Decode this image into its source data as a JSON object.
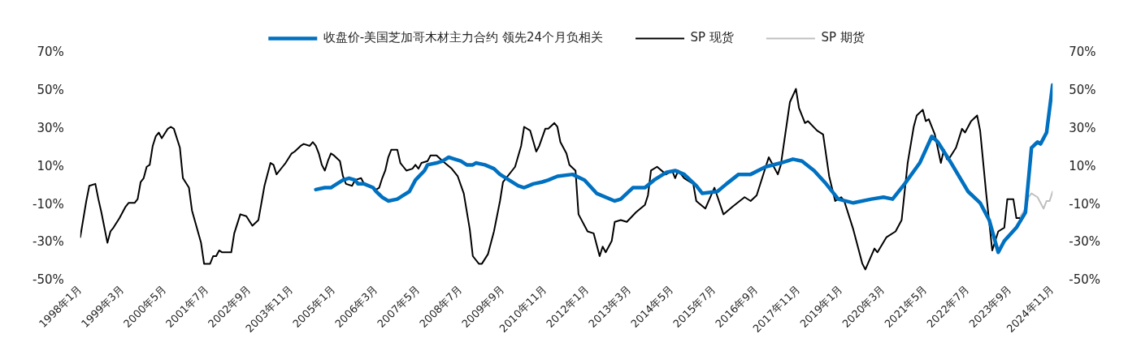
{
  "chart_data": {
    "type": "line",
    "legend": "top",
    "grid": false,
    "marker": "none",
    "line_style": "solid",
    "ylim": [
      -50,
      70
    ],
    "yticks": [
      {
        "value": -50,
        "label": "-50%"
      },
      {
        "value": -30,
        "label": "-30%"
      },
      {
        "value": -10,
        "label": "-10%"
      },
      {
        "value": 10,
        "label": "10%"
      },
      {
        "value": 30,
        "label": "30%"
      },
      {
        "value": 50,
        "label": "50%"
      },
      {
        "value": 70,
        "label": "70%"
      }
    ],
    "y2lim": [
      -50,
      70
    ],
    "y2ticks": [
      {
        "value": -50,
        "label": "-50%"
      },
      {
        "value": -30,
        "label": "-30%"
      },
      {
        "value": -10,
        "label": "-10%"
      },
      {
        "value": 10,
        "label": "10%"
      },
      {
        "value": 30,
        "label": "30%"
      },
      {
        "value": 50,
        "label": "50%"
      },
      {
        "value": 70,
        "label": "70%"
      }
    ],
    "xlim": [
      "1998-01",
      "2024-11"
    ],
    "xticks": [
      {
        "value": "1998-01",
        "label": "1998年1月"
      },
      {
        "value": "1999-03",
        "label": "1999年3月"
      },
      {
        "value": "2000-05",
        "label": "2000年5月"
      },
      {
        "value": "2001-07",
        "label": "2001年7月"
      },
      {
        "value": "2002-09",
        "label": "2002年9月"
      },
      {
        "value": "2003-11",
        "label": "2003年11月"
      },
      {
        "value": "2005-01",
        "label": "2005年1月"
      },
      {
        "value": "2006-03",
        "label": "2006年3月"
      },
      {
        "value": "2007-05",
        "label": "2007年5月"
      },
      {
        "value": "2008-07",
        "label": "2008年7月"
      },
      {
        "value": "2009-09",
        "label": "2009年9月"
      },
      {
        "value": "2010-11",
        "label": "2010年11月"
      },
      {
        "value": "2012-01",
        "label": "2012年1月"
      },
      {
        "value": "2013-03",
        "label": "2013年3月"
      },
      {
        "value": "2014-05",
        "label": "2014年5月"
      },
      {
        "value": "2015-07",
        "label": "2015年7月"
      },
      {
        "value": "2016-09",
        "label": "2016年9月"
      },
      {
        "value": "2017-11",
        "label": "2017年11月"
      },
      {
        "value": "2019-01",
        "label": "2019年1月"
      },
      {
        "value": "2020-03",
        "label": "2020年3月"
      },
      {
        "value": "2021-05",
        "label": "2021年5月"
      },
      {
        "value": "2022-07",
        "label": "2022年7月"
      },
      {
        "value": "2023-09",
        "label": "2023年9月"
      },
      {
        "value": "2024-11",
        "label": "2024年11月"
      }
    ],
    "series": [
      {
        "name": "收盘价-美国芝加哥木材主力合约 领先24个月负相关",
        "color": "#0070c0",
        "x": [
          "2004-07",
          "2004-10",
          "2004-12",
          "2005-01",
          "2005-04",
          "2005-06",
          "2005-08",
          "2005-09",
          "2005-11",
          "2006-02",
          "2006-03",
          "2006-05",
          "2006-07",
          "2006-10",
          "2006-12",
          "2007-02",
          "2007-04",
          "2007-07",
          "2007-08",
          "2007-11",
          "2008-01",
          "2008-03",
          "2008-05",
          "2008-07",
          "2008-09",
          "2008-11",
          "2008-12",
          "2009-03",
          "2009-06",
          "2009-08",
          "2009-11",
          "2010-02",
          "2010-04",
          "2010-07",
          "2010-10",
          "2010-12",
          "2011-03",
          "2011-08",
          "2011-12",
          "2012-04",
          "2012-10",
          "2012-12",
          "2013-04",
          "2013-08",
          "2013-11",
          "2014-03",
          "2014-06",
          "2014-09",
          "2015-01",
          "2015-03",
          "2015-08",
          "2015-11",
          "2016-03",
          "2016-07",
          "2016-12",
          "2017-05",
          "2017-09",
          "2017-12",
          "2018-04",
          "2018-08",
          "2018-12",
          "2019-05",
          "2019-11",
          "2020-03",
          "2020-06",
          "2020-10",
          "2021-03",
          "2021-07",
          "2021-09",
          "2022-01",
          "2022-07",
          "2022-11",
          "2023-02",
          "2023-05",
          "2023-07",
          "2023-11",
          "2024-02",
          "2024-04",
          "2024-06",
          "2024-07",
          "2024-09",
          "2024-11"
        ],
        "values": [
          -2,
          -1,
          -1,
          0,
          3,
          4,
          3,
          1,
          1,
          -1,
          -3,
          -6,
          -8,
          -7,
          -5,
          -3,
          3,
          8,
          11,
          12,
          13,
          15,
          14,
          13,
          11,
          11,
          12,
          11,
          9,
          6,
          3,
          0,
          -1,
          1,
          2,
          3,
          5,
          6,
          3,
          -4,
          -8,
          -7,
          -1,
          -1,
          3,
          7,
          8,
          6,
          0,
          -4,
          -3,
          1,
          6,
          6,
          10,
          12,
          14,
          13,
          8,
          1,
          -7,
          -9,
          -7,
          -6,
          -7,
          1,
          12,
          26,
          23,
          13,
          -3,
          -9,
          -18,
          -35,
          -29,
          -22,
          -14,
          20,
          23,
          22,
          28,
          53
        ]
      },
      {
        "name": "SP 现货",
        "color": "#000000",
        "x": [
          "1998-01",
          "1998-03",
          "1998-04",
          "1998-06",
          "1998-07",
          "1998-08",
          "1998-10",
          "1998-11",
          "1998-12",
          "1999-02",
          "1999-04",
          "1999-05",
          "1999-07",
          "1999-08",
          "1999-09",
          "1999-10",
          "1999-11",
          "1999-12",
          "2000-01",
          "2000-02",
          "2000-03",
          "2000-04",
          "2000-06",
          "2000-07",
          "2000-08",
          "2000-10",
          "2000-11",
          "2001-01",
          "2001-02",
          "2001-05",
          "2001-06",
          "2001-08",
          "2001-09",
          "2001-10",
          "2001-11",
          "2001-12",
          "2002-03",
          "2002-04",
          "2002-06",
          "2002-08",
          "2002-10",
          "2002-12",
          "2003-02",
          "2003-04",
          "2003-05",
          "2003-06",
          "2003-08",
          "2003-09",
          "2003-11",
          "2003-12",
          "2004-02",
          "2004-03",
          "2004-05",
          "2004-06",
          "2004-07",
          "2004-08",
          "2004-09",
          "2004-10",
          "2004-11",
          "2004-12",
          "2005-01",
          "2005-03",
          "2005-04",
          "2005-05",
          "2005-07",
          "2005-08",
          "2005-10",
          "2005-11",
          "2006-02",
          "2006-03",
          "2006-04",
          "2006-05",
          "2006-06",
          "2006-07",
          "2006-08",
          "2006-10",
          "2006-11",
          "2006-12",
          "2007-01",
          "2007-03",
          "2007-04",
          "2007-05",
          "2007-06",
          "2007-08",
          "2007-09",
          "2007-11",
          "2008-01",
          "2008-04",
          "2008-06",
          "2008-08",
          "2008-10",
          "2008-11",
          "2009-01",
          "2009-02",
          "2009-04",
          "2009-06",
          "2009-08",
          "2009-09",
          "2010-01",
          "2010-03",
          "2010-04",
          "2010-06",
          "2010-08",
          "2010-09",
          "2010-11",
          "2010-12",
          "2011-02",
          "2011-03",
          "2011-04",
          "2011-06",
          "2011-07",
          "2011-09",
          "2011-10",
          "2012-01",
          "2012-03",
          "2012-05",
          "2012-06",
          "2012-07",
          "2012-09",
          "2012-10",
          "2012-12",
          "2013-02",
          "2013-05",
          "2013-08",
          "2013-09",
          "2013-10",
          "2013-12",
          "2014-03",
          "2014-05",
          "2014-06",
          "2014-07",
          "2014-09",
          "2014-12",
          "2015-01",
          "2015-04",
          "2015-07",
          "2015-10",
          "2016-01",
          "2016-05",
          "2016-07",
          "2016-09",
          "2017-01",
          "2017-04",
          "2017-05",
          "2017-08",
          "2017-10",
          "2017-11",
          "2018-01",
          "2018-02",
          "2018-05",
          "2018-07",
          "2018-08",
          "2018-09",
          "2018-11",
          "2019-01",
          "2019-02",
          "2019-05",
          "2019-08",
          "2019-09",
          "2019-12",
          "2020-01",
          "2020-04",
          "2020-07",
          "2020-09",
          "2020-11",
          "2021-01",
          "2021-02",
          "2021-04",
          "2021-05",
          "2021-06",
          "2021-08",
          "2021-10",
          "2021-11",
          "2021-12",
          "2022-01",
          "2022-03",
          "2022-05",
          "2022-06",
          "2022-08",
          "2022-10",
          "2022-11",
          "2023-01",
          "2023-03",
          "2023-05",
          "2023-07",
          "2023-08",
          "2023-10",
          "2023-11",
          "2023-12"
        ],
        "values": [
          -27,
          -8,
          0,
          1,
          -7,
          -14,
          -30,
          -24,
          -22,
          -17,
          -11,
          -9,
          -9,
          -7,
          2,
          4,
          10,
          11,
          21,
          26,
          28,
          25,
          30,
          31,
          30,
          20,
          4,
          -1,
          -13,
          -30,
          -41,
          -41,
          -37,
          -37,
          -34,
          -35,
          -35,
          -25,
          -15,
          -16,
          -21,
          -18,
          0,
          12,
          11,
          6,
          10,
          12,
          17,
          18,
          21,
          22,
          21,
          23,
          21,
          17,
          11,
          8,
          13,
          17,
          16,
          13,
          5,
          1,
          0,
          3,
          4,
          1,
          -1,
          -2,
          -1,
          4,
          8,
          15,
          19,
          19,
          12,
          10,
          8,
          9,
          11,
          9,
          12,
          13,
          16,
          16,
          13,
          9,
          5,
          -4,
          -23,
          -37,
          -41,
          -41,
          -36,
          -24,
          -8,
          2,
          10,
          21,
          31,
          29,
          18,
          21,
          30,
          30,
          33,
          31,
          23,
          17,
          11,
          8,
          -15,
          -24,
          -25,
          -37,
          -32,
          -35,
          -29,
          -19,
          -18,
          -19,
          -14,
          -10,
          -5,
          8,
          10,
          6,
          8,
          4,
          8,
          4,
          1,
          -8,
          -12,
          -1,
          -15,
          -11,
          -6,
          -8,
          -5,
          15,
          6,
          11,
          44,
          51,
          41,
          33,
          34,
          29,
          27,
          16,
          5,
          -8,
          -6,
          -8,
          -23,
          -41,
          -44,
          -33,
          -35,
          -27,
          -24,
          -18,
          12,
          31,
          37,
          40,
          34,
          35,
          27,
          12,
          19,
          14,
          15,
          20,
          30,
          28,
          34,
          37,
          29,
          -4,
          -34,
          -24,
          -22,
          -7,
          -7,
          -17,
          -17
        ]
      },
      {
        "name": "SP 期货",
        "color": "#bfbfbf",
        "x": [
          "2023-12",
          "2024-02",
          "2024-03",
          "2024-04",
          "2024-06",
          "2024-08",
          "2024-09",
          "2024-10",
          "2024-11"
        ],
        "values": [
          -17,
          -12,
          -6,
          -4,
          -6,
          -12,
          -8,
          -8,
          -3
        ]
      }
    ]
  }
}
